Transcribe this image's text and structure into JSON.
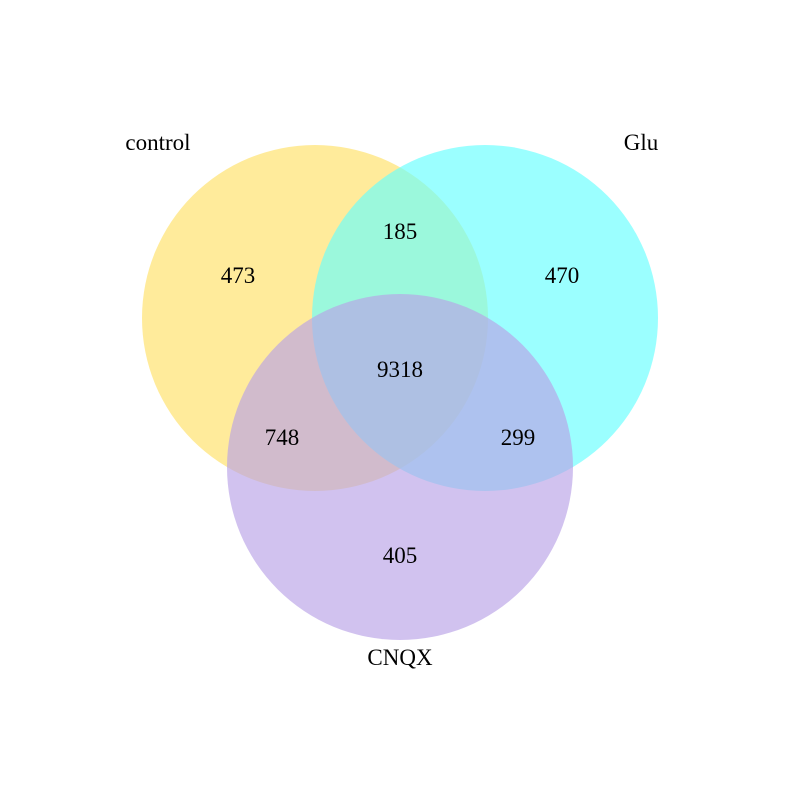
{
  "sets": [
    {
      "id": "control",
      "label": "control",
      "color": "#ffe066"
    },
    {
      "id": "glu",
      "label": "Glu",
      "color": "#66ffff"
    },
    {
      "id": "cnqx",
      "label": "CNQX",
      "color": "#b9a1e6"
    }
  ],
  "regions": {
    "control_only": "473",
    "glu_only": "470",
    "cnqx_only": "405",
    "control_glu": "185",
    "control_cnqx": "748",
    "glu_cnqx": "299",
    "all_three": "9318"
  }
}
